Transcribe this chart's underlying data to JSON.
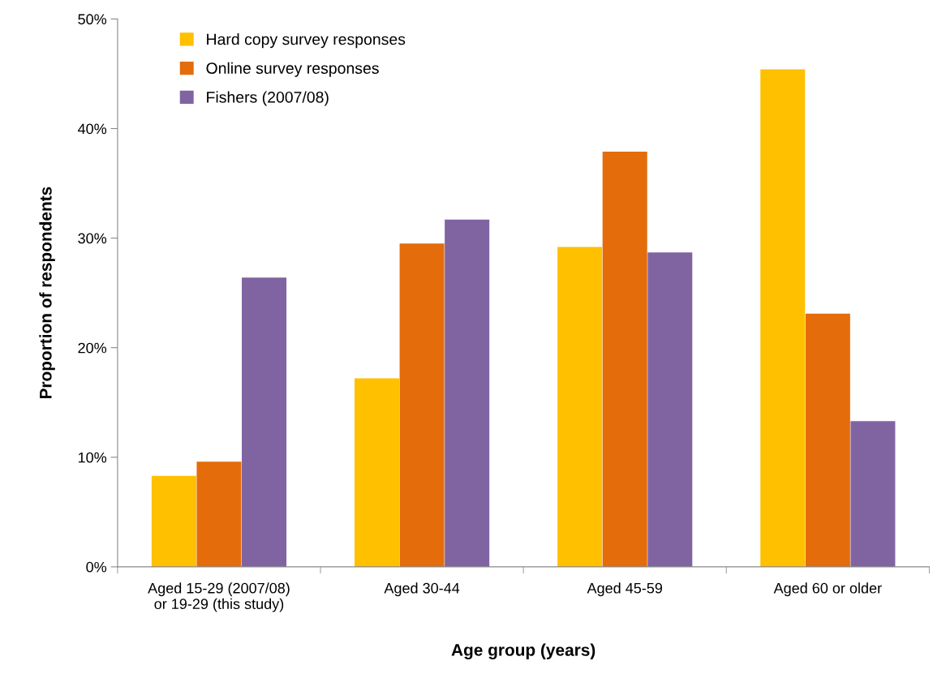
{
  "chart_data": {
    "type": "bar",
    "xlabel": "Age group (years)",
    "ylabel": "Proportion of respondents",
    "categories": [
      "Aged 15-29 (2007/08)\nor 19-29 (this study)",
      "Aged 30-44",
      "Aged 45-59",
      "Aged 60 or older"
    ],
    "series": [
      {
        "name": "Hard copy survey responses",
        "color": "#ffc000",
        "values": [
          8.3,
          17.2,
          29.2,
          45.4
        ]
      },
      {
        "name": "Online survey responses",
        "color": "#e46c0a",
        "values": [
          9.6,
          29.5,
          37.9,
          23.1
        ]
      },
      {
        "name": "Fishers (2007/08)",
        "color": "#8064a2",
        "values": [
          26.4,
          31.7,
          28.7,
          13.3
        ]
      }
    ],
    "ylim": [
      0,
      50
    ],
    "yticks": [
      {
        "value": 0,
        "label": "0%"
      },
      {
        "value": 10,
        "label": "10%"
      },
      {
        "value": 20,
        "label": "20%"
      },
      {
        "value": 30,
        "label": "30%"
      },
      {
        "value": 40,
        "label": "40%"
      },
      {
        "value": 50,
        "label": "50%"
      }
    ],
    "grid": false,
    "legend": "top left"
  }
}
